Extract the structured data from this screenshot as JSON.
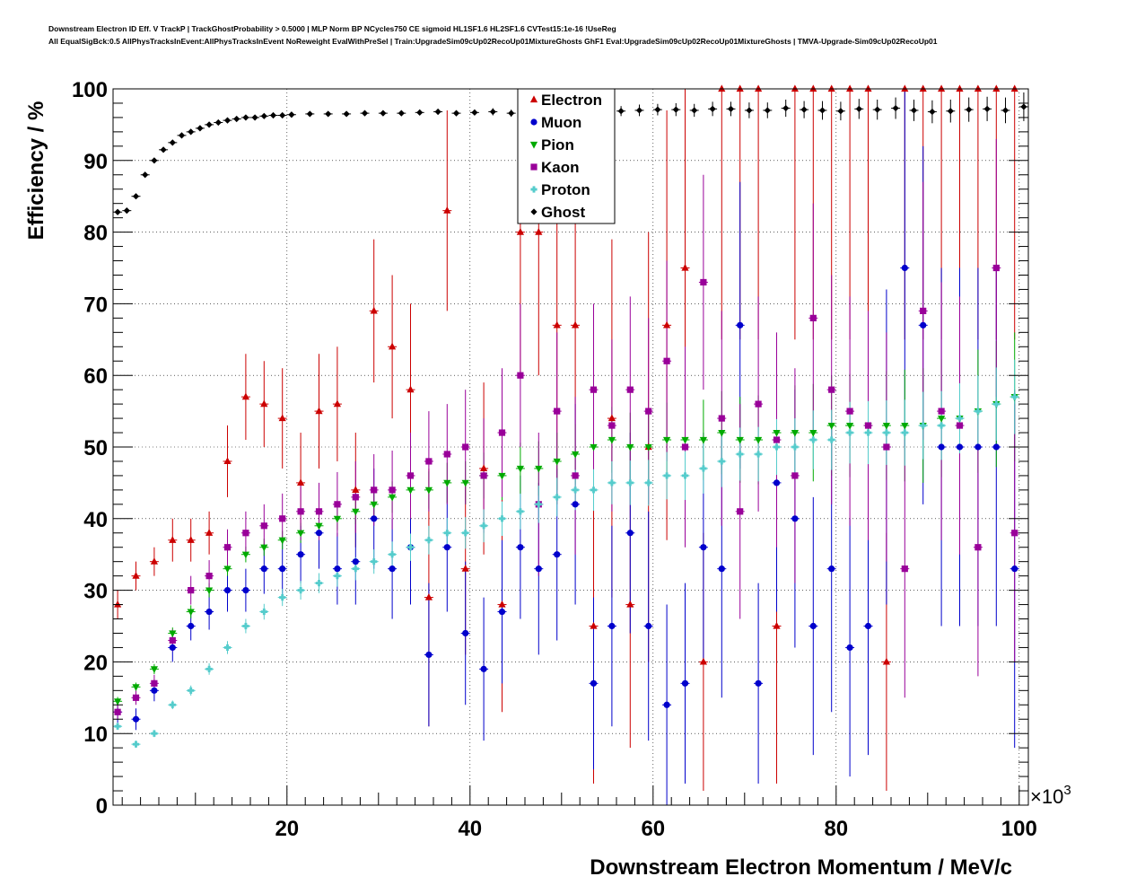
{
  "header": {
    "title_line1": "Downstream Electron ID Eff. V TrackP | TrackGhostProbability > 0.5000 | MLP Norm BP NCycles750 CE sigmoid HL1SF1.6 HL2SF1.6 CVTest15:1e-16 !UseReg",
    "title_line2": "All EqualSigBck:0.5 AllPhysTracksInEvent:AllPhysTracksInEvent NoReweight EvalWithPreSel | Train:UpgradeSim09cUp02RecoUp01MixtureGhosts GhF1 Eval:UpgradeSim09cUp02RecoUp01MixtureGhosts | TMVA-Upgrade-Sim09cUp02RecoUp01"
  },
  "chart_data": {
    "type": "scatter",
    "title": "Downstream Electron ID Eff. V TrackP | TrackGhostProbability > 0.5000 | MLP Norm BP NCycles750 CE sigmoid HL1SF1.6 HL2SF1.6 CVTest15:1e-16 !UseReg",
    "xlabel": "Downstream Electron Momentum / MeV/c",
    "ylabel": "Efficiency / %",
    "x_exponent_label": "×10",
    "x_exponent_power": "3",
    "xlim": [
      1,
      101
    ],
    "ylim": [
      0,
      100
    ],
    "x_ticks": [
      "20",
      "40",
      "60",
      "80",
      "100"
    ],
    "y_ticks": [
      "0",
      "10",
      "20",
      "30",
      "40",
      "50",
      "60",
      "70",
      "80",
      "90",
      "100"
    ],
    "grid": true,
    "legend_position": "top-center",
    "series": [
      {
        "name": "Electron",
        "color": "#cc0000",
        "marker": "triangle-up",
        "x": [
          1.5,
          3.5,
          5.5,
          7.5,
          9.5,
          11.5,
          13.5,
          15.5,
          17.5,
          19.5,
          21.5,
          23.5,
          25.5,
          27.5,
          29.5,
          31.5,
          33.5,
          35.5,
          37.5,
          39.5,
          41.5,
          43.5,
          45.5,
          47.5,
          49.5,
          51.5,
          53.5,
          55.5,
          57.5,
          59.5,
          61.5,
          63.5,
          65.5,
          67.5,
          69.5,
          71.5,
          73.5,
          75.5,
          77.5,
          79.5,
          81.5,
          83.5,
          85.5,
          87.5,
          89.5,
          91.5,
          93.5,
          95.5,
          97.5,
          99.5
        ],
        "y": [
          28,
          32,
          34,
          37,
          37,
          38,
          48,
          57,
          56,
          54,
          45,
          55,
          56,
          44,
          69,
          64,
          58,
          29,
          83,
          33,
          47,
          28,
          80,
          80,
          67,
          67,
          25,
          54,
          28,
          50,
          67,
          75,
          20,
          100,
          100,
          100,
          25,
          100,
          100,
          100,
          100,
          100,
          20,
          100,
          100,
          100,
          100,
          100,
          100,
          100
        ],
        "err": [
          2,
          2,
          2,
          3,
          3,
          3,
          5,
          6,
          6,
          7,
          7,
          8,
          8,
          8,
          10,
          10,
          12,
          18,
          14,
          12,
          12,
          15,
          20,
          20,
          25,
          25,
          22,
          25,
          20,
          30,
          30,
          28,
          18,
          35,
          35,
          35,
          22,
          35,
          35,
          35,
          35,
          35,
          18,
          35,
          35,
          35,
          35,
          35,
          35,
          35
        ]
      },
      {
        "name": "Muon",
        "color": "#0000cc",
        "marker": "circle",
        "x": [
          1.5,
          3.5,
          5.5,
          7.5,
          9.5,
          11.5,
          13.5,
          15.5,
          17.5,
          19.5,
          21.5,
          23.5,
          25.5,
          27.5,
          29.5,
          31.5,
          33.5,
          35.5,
          37.5,
          39.5,
          41.5,
          43.5,
          45.5,
          47.5,
          49.5,
          51.5,
          53.5,
          55.5,
          57.5,
          59.5,
          61.5,
          63.5,
          65.5,
          67.5,
          69.5,
          71.5,
          73.5,
          75.5,
          77.5,
          79.5,
          81.5,
          83.5,
          85.5,
          87.5,
          89.5,
          91.5,
          93.5,
          95.5,
          97.5,
          99.5
        ],
        "y": [
          13,
          12,
          16,
          22,
          25,
          27,
          30,
          30,
          33,
          33,
          35,
          38,
          33,
          34,
          40,
          33,
          36,
          21,
          36,
          24,
          19,
          27,
          36,
          33,
          35,
          42,
          17,
          25,
          38,
          25,
          14,
          17,
          36,
          33,
          67,
          17,
          45,
          40,
          25,
          33,
          22,
          25,
          50,
          75,
          67,
          50,
          50,
          50,
          50,
          33
        ],
        "err": [
          1.5,
          1.5,
          1.5,
          2,
          2,
          2.5,
          3,
          3,
          3.5,
          4,
          4,
          5,
          5,
          6,
          7,
          7,
          8,
          10,
          9,
          10,
          10,
          10,
          10,
          12,
          12,
          14,
          12,
          14,
          14,
          16,
          14,
          14,
          16,
          18,
          20,
          14,
          18,
          18,
          18,
          20,
          18,
          18,
          22,
          25,
          25,
          25,
          25,
          25,
          25,
          25
        ]
      },
      {
        "name": "Pion",
        "color": "#00aa00",
        "marker": "triangle-down",
        "x": [
          1.5,
          3.5,
          5.5,
          7.5,
          9.5,
          11.5,
          13.5,
          15.5,
          17.5,
          19.5,
          21.5,
          23.5,
          25.5,
          27.5,
          29.5,
          31.5,
          33.5,
          35.5,
          37.5,
          39.5,
          41.5,
          43.5,
          45.5,
          47.5,
          49.5,
          51.5,
          53.5,
          55.5,
          57.5,
          59.5,
          61.5,
          63.5,
          65.5,
          67.5,
          69.5,
          71.5,
          73.5,
          75.5,
          77.5,
          79.5,
          81.5,
          83.5,
          85.5,
          87.5,
          89.5,
          91.5,
          93.5,
          95.5,
          97.5,
          99.5
        ],
        "y": [
          14.5,
          16.5,
          19,
          24,
          27,
          30,
          33,
          35,
          36,
          37,
          38,
          39,
          40,
          41,
          42,
          43,
          44,
          44,
          45,
          45,
          46,
          46,
          47,
          47,
          48,
          49,
          50,
          51,
          50,
          50,
          51,
          51,
          51,
          52,
          51,
          51,
          52,
          52,
          52,
          53,
          53,
          53,
          53,
          53,
          53,
          54,
          54,
          55,
          56,
          57
        ],
        "err": [
          0.6,
          0.6,
          0.7,
          0.8,
          0.9,
          1,
          1,
          1.1,
          1.2,
          1.3,
          1.4,
          1.5,
          1.6,
          1.8,
          2,
          2.2,
          2.4,
          2.6,
          2.8,
          3,
          3.2,
          3.4,
          3.6,
          3.8,
          4,
          4.2,
          4.4,
          4.6,
          4.8,
          5,
          5.2,
          5.4,
          5.6,
          5.8,
          6,
          6.2,
          6.4,
          6.6,
          6.8,
          7,
          7.2,
          7.4,
          7.6,
          7.8,
          8,
          8.2,
          8.4,
          8.6,
          8.8,
          9
        ]
      },
      {
        "name": "Kaon",
        "color": "#990099",
        "marker": "square",
        "x": [
          1.5,
          3.5,
          5.5,
          7.5,
          9.5,
          11.5,
          13.5,
          15.5,
          17.5,
          19.5,
          21.5,
          23.5,
          25.5,
          27.5,
          29.5,
          31.5,
          33.5,
          35.5,
          37.5,
          39.5,
          41.5,
          43.5,
          45.5,
          47.5,
          49.5,
          51.5,
          53.5,
          55.5,
          57.5,
          59.5,
          61.5,
          63.5,
          65.5,
          67.5,
          69.5,
          71.5,
          73.5,
          75.5,
          77.5,
          79.5,
          81.5,
          83.5,
          85.5,
          87.5,
          89.5,
          91.5,
          93.5,
          95.5,
          97.5,
          99.5
        ],
        "y": [
          13,
          15,
          17,
          23,
          30,
          32,
          36,
          38,
          39,
          40,
          41,
          41,
          42,
          43,
          44,
          44,
          46,
          48,
          49,
          50,
          46,
          52,
          60,
          42,
          55,
          46,
          58,
          53,
          58,
          55,
          62,
          50,
          73,
          54,
          41,
          56,
          51,
          46,
          68,
          58,
          55,
          53,
          50,
          33,
          69,
          55,
          53,
          36,
          75,
          38
        ],
        "err": [
          1,
          1,
          1.2,
          1.5,
          2,
          2.2,
          2.5,
          3,
          3,
          3.5,
          4,
          4,
          4.5,
          5,
          5,
          5.5,
          6,
          7,
          7,
          8,
          8,
          9,
          10,
          10,
          11,
          11,
          12,
          12,
          13,
          13,
          14,
          14,
          15,
          15,
          15,
          15,
          15,
          15,
          16,
          16,
          16,
          16,
          16,
          18,
          18,
          18,
          18,
          18,
          18,
          18
        ]
      },
      {
        "name": "Proton",
        "color": "#55cccc",
        "marker": "cross",
        "x": [
          1.5,
          3.5,
          5.5,
          7.5,
          9.5,
          11.5,
          13.5,
          15.5,
          17.5,
          19.5,
          21.5,
          23.5,
          25.5,
          27.5,
          29.5,
          31.5,
          33.5,
          35.5,
          37.5,
          39.5,
          41.5,
          43.5,
          45.5,
          47.5,
          49.5,
          51.5,
          53.5,
          55.5,
          57.5,
          59.5,
          61.5,
          63.5,
          65.5,
          67.5,
          69.5,
          71.5,
          73.5,
          75.5,
          77.5,
          79.5,
          81.5,
          83.5,
          85.5,
          87.5,
          89.5,
          91.5,
          93.5,
          95.5,
          97.5,
          99.5
        ],
        "y": [
          11,
          8.5,
          10,
          14,
          16,
          19,
          22,
          25,
          27,
          29,
          30,
          31,
          32,
          33,
          34,
          35,
          36,
          37,
          38,
          38,
          39,
          40,
          41,
          42,
          43,
          44,
          44,
          45,
          45,
          45,
          46,
          46,
          47,
          48,
          49,
          49,
          50,
          50,
          51,
          51,
          52,
          52,
          52,
          52,
          53,
          53,
          54,
          55,
          56,
          57
        ],
        "err": [
          0.5,
          0.5,
          0.5,
          0.6,
          0.7,
          0.8,
          0.9,
          1,
          1.1,
          1.2,
          1.3,
          1.4,
          1.5,
          1.6,
          1.7,
          1.8,
          1.9,
          2,
          2.1,
          2.2,
          2.3,
          2.4,
          2.5,
          2.6,
          2.7,
          2.8,
          2.9,
          3,
          3.1,
          3.2,
          3.3,
          3.4,
          3.5,
          3.6,
          3.7,
          3.8,
          3.9,
          4,
          4.1,
          4.2,
          4.3,
          4.4,
          4.5,
          4.6,
          4.7,
          4.8,
          4.9,
          5,
          5.1,
          5.2
        ]
      },
      {
        "name": "Ghost",
        "color": "#000000",
        "marker": "diamond",
        "x": [
          1.5,
          2.5,
          3.5,
          4.5,
          5.5,
          6.5,
          7.5,
          8.5,
          9.5,
          10.5,
          11.5,
          12.5,
          13.5,
          14.5,
          15.5,
          16.5,
          17.5,
          18.5,
          19.5,
          20.5,
          22.5,
          24.5,
          26.5,
          28.5,
          30.5,
          32.5,
          34.5,
          36.5,
          38.5,
          40.5,
          42.5,
          44.5,
          46.5,
          48.5,
          50.5,
          52.5,
          54.5,
          56.5,
          58.5,
          60.5,
          62.5,
          64.5,
          66.5,
          68.5,
          70.5,
          72.5,
          74.5,
          76.5,
          78.5,
          80.5,
          82.5,
          84.5,
          86.5,
          88.5,
          90.5,
          92.5,
          94.5,
          96.5,
          98.5,
          100.5
        ],
        "y": [
          82.8,
          83,
          85,
          88,
          90,
          91.5,
          92.5,
          93.5,
          94,
          94.5,
          95,
          95.3,
          95.6,
          95.8,
          96,
          96,
          96.2,
          96.3,
          96.3,
          96.4,
          96.5,
          96.5,
          96.5,
          96.6,
          96.6,
          96.6,
          96.7,
          96.8,
          96.6,
          96.7,
          96.8,
          96.6,
          96.9,
          96.4,
          96.5,
          97,
          96.8,
          96.9,
          97,
          97.1,
          97.1,
          97,
          97.2,
          97.2,
          97,
          97,
          97.3,
          97.1,
          97,
          96.9,
          97.2,
          97.1,
          97.3,
          97,
          96.8,
          96.9,
          97.1,
          97.2,
          97,
          97.5
        ],
        "err": [
          0.2,
          0.2,
          0.2,
          0.2,
          0.2,
          0.2,
          0.2,
          0.2,
          0.2,
          0.2,
          0.2,
          0.2,
          0.2,
          0.2,
          0.2,
          0.2,
          0.2,
          0.2,
          0.2,
          0.2,
          0.3,
          0.3,
          0.3,
          0.3,
          0.3,
          0.3,
          0.4,
          0.4,
          0.4,
          0.4,
          0.5,
          0.5,
          0.5,
          0.6,
          0.6,
          0.6,
          0.7,
          0.7,
          0.8,
          0.8,
          0.9,
          0.9,
          1,
          1,
          1.1,
          1.1,
          1.2,
          1.2,
          1.3,
          1.3,
          1.4,
          1.4,
          1.5,
          1.5,
          1.6,
          1.6,
          1.7,
          1.7,
          1.8,
          2
        ]
      }
    ]
  }
}
